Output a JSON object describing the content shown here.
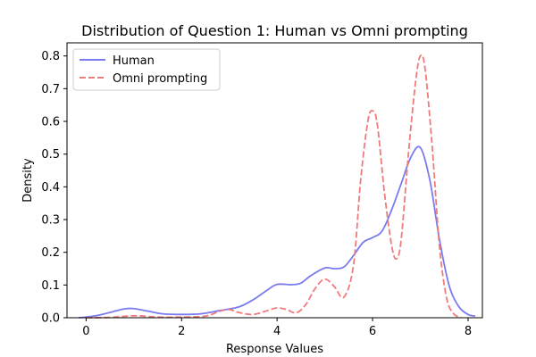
{
  "chart_data": {
    "type": "line",
    "title": "Distribution of Question 1: Human vs Omni prompting",
    "xlabel": "Response Values",
    "ylabel": "Density",
    "xlim": [
      -0.4,
      8.3
    ],
    "ylim": [
      0,
      0.84
    ],
    "xticks": [
      0,
      2,
      4,
      6,
      8
    ],
    "yticks": [
      0.0,
      0.1,
      0.2,
      0.3,
      0.4,
      0.5,
      0.6,
      0.7,
      0.8
    ],
    "xtick_labels": [
      "0",
      "2",
      "4",
      "6",
      "8"
    ],
    "ytick_labels": [
      "0.0",
      "0.1",
      "0.2",
      "0.3",
      "0.4",
      "0.5",
      "0.6",
      "0.7",
      "0.8"
    ],
    "grid": false,
    "legend_position": "top-left",
    "series": [
      {
        "name": "Human",
        "color": "#7b7bf0",
        "style": "solid",
        "x": [
          -0.15,
          0.0,
          0.3,
          0.6,
          0.8,
          1.0,
          1.3,
          1.6,
          2.0,
          2.4,
          2.8,
          3.2,
          3.5,
          3.8,
          4.0,
          4.3,
          4.5,
          4.7,
          5.0,
          5.2,
          5.4,
          5.6,
          5.8,
          6.0,
          6.2,
          6.4,
          6.6,
          6.8,
          7.0,
          7.2,
          7.4,
          7.6,
          7.8,
          8.0,
          8.15
        ],
        "y": [
          0.0,
          0.002,
          0.009,
          0.02,
          0.027,
          0.028,
          0.02,
          0.012,
          0.01,
          0.012,
          0.022,
          0.033,
          0.055,
          0.085,
          0.102,
          0.101,
          0.106,
          0.128,
          0.152,
          0.15,
          0.155,
          0.19,
          0.23,
          0.245,
          0.265,
          0.33,
          0.41,
          0.49,
          0.52,
          0.42,
          0.24,
          0.1,
          0.035,
          0.01,
          0.005
        ]
      },
      {
        "name": "Omni prompting",
        "color": "#f07b7b",
        "style": "dashed",
        "x": [
          0.0,
          0.5,
          1.0,
          1.5,
          2.0,
          2.5,
          2.8,
          3.0,
          3.2,
          3.5,
          3.8,
          4.0,
          4.2,
          4.4,
          4.6,
          4.8,
          5.0,
          5.2,
          5.4,
          5.6,
          5.75,
          5.9,
          6.0,
          6.1,
          6.25,
          6.4,
          6.5,
          6.6,
          6.75,
          6.9,
          7.0,
          7.1,
          7.25,
          7.4,
          7.55,
          7.7,
          7.85
        ],
        "y": [
          0.0,
          0.001,
          0.006,
          0.002,
          0.002,
          0.005,
          0.02,
          0.025,
          0.016,
          0.01,
          0.022,
          0.03,
          0.025,
          0.015,
          0.04,
          0.09,
          0.118,
          0.095,
          0.063,
          0.16,
          0.42,
          0.6,
          0.632,
          0.59,
          0.38,
          0.22,
          0.18,
          0.24,
          0.5,
          0.72,
          0.8,
          0.76,
          0.52,
          0.22,
          0.06,
          0.012,
          0.001
        ]
      }
    ]
  }
}
